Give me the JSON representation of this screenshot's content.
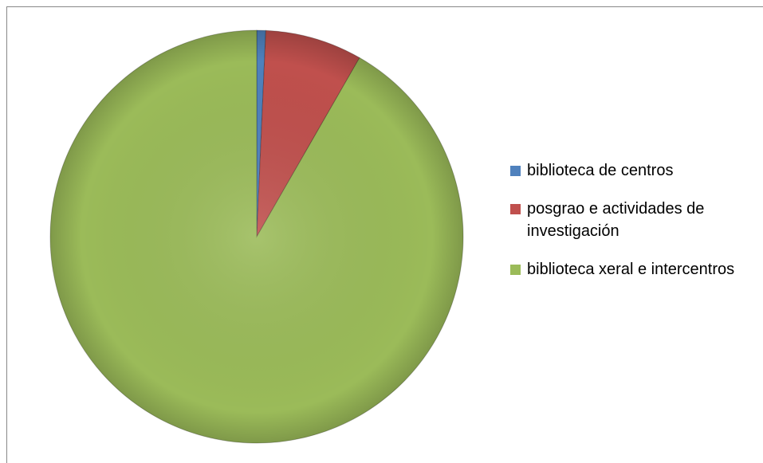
{
  "chart_data": {
    "type": "pie",
    "categories": [
      "biblioteca de centros",
      "posgrao e actividades de investigación",
      "biblioteca xeral e intercentros"
    ],
    "values": [
      0.7,
      7.6,
      91.7
    ],
    "colors": [
      "#4f81bd",
      "#c0504d",
      "#9bbb59"
    ]
  }
}
